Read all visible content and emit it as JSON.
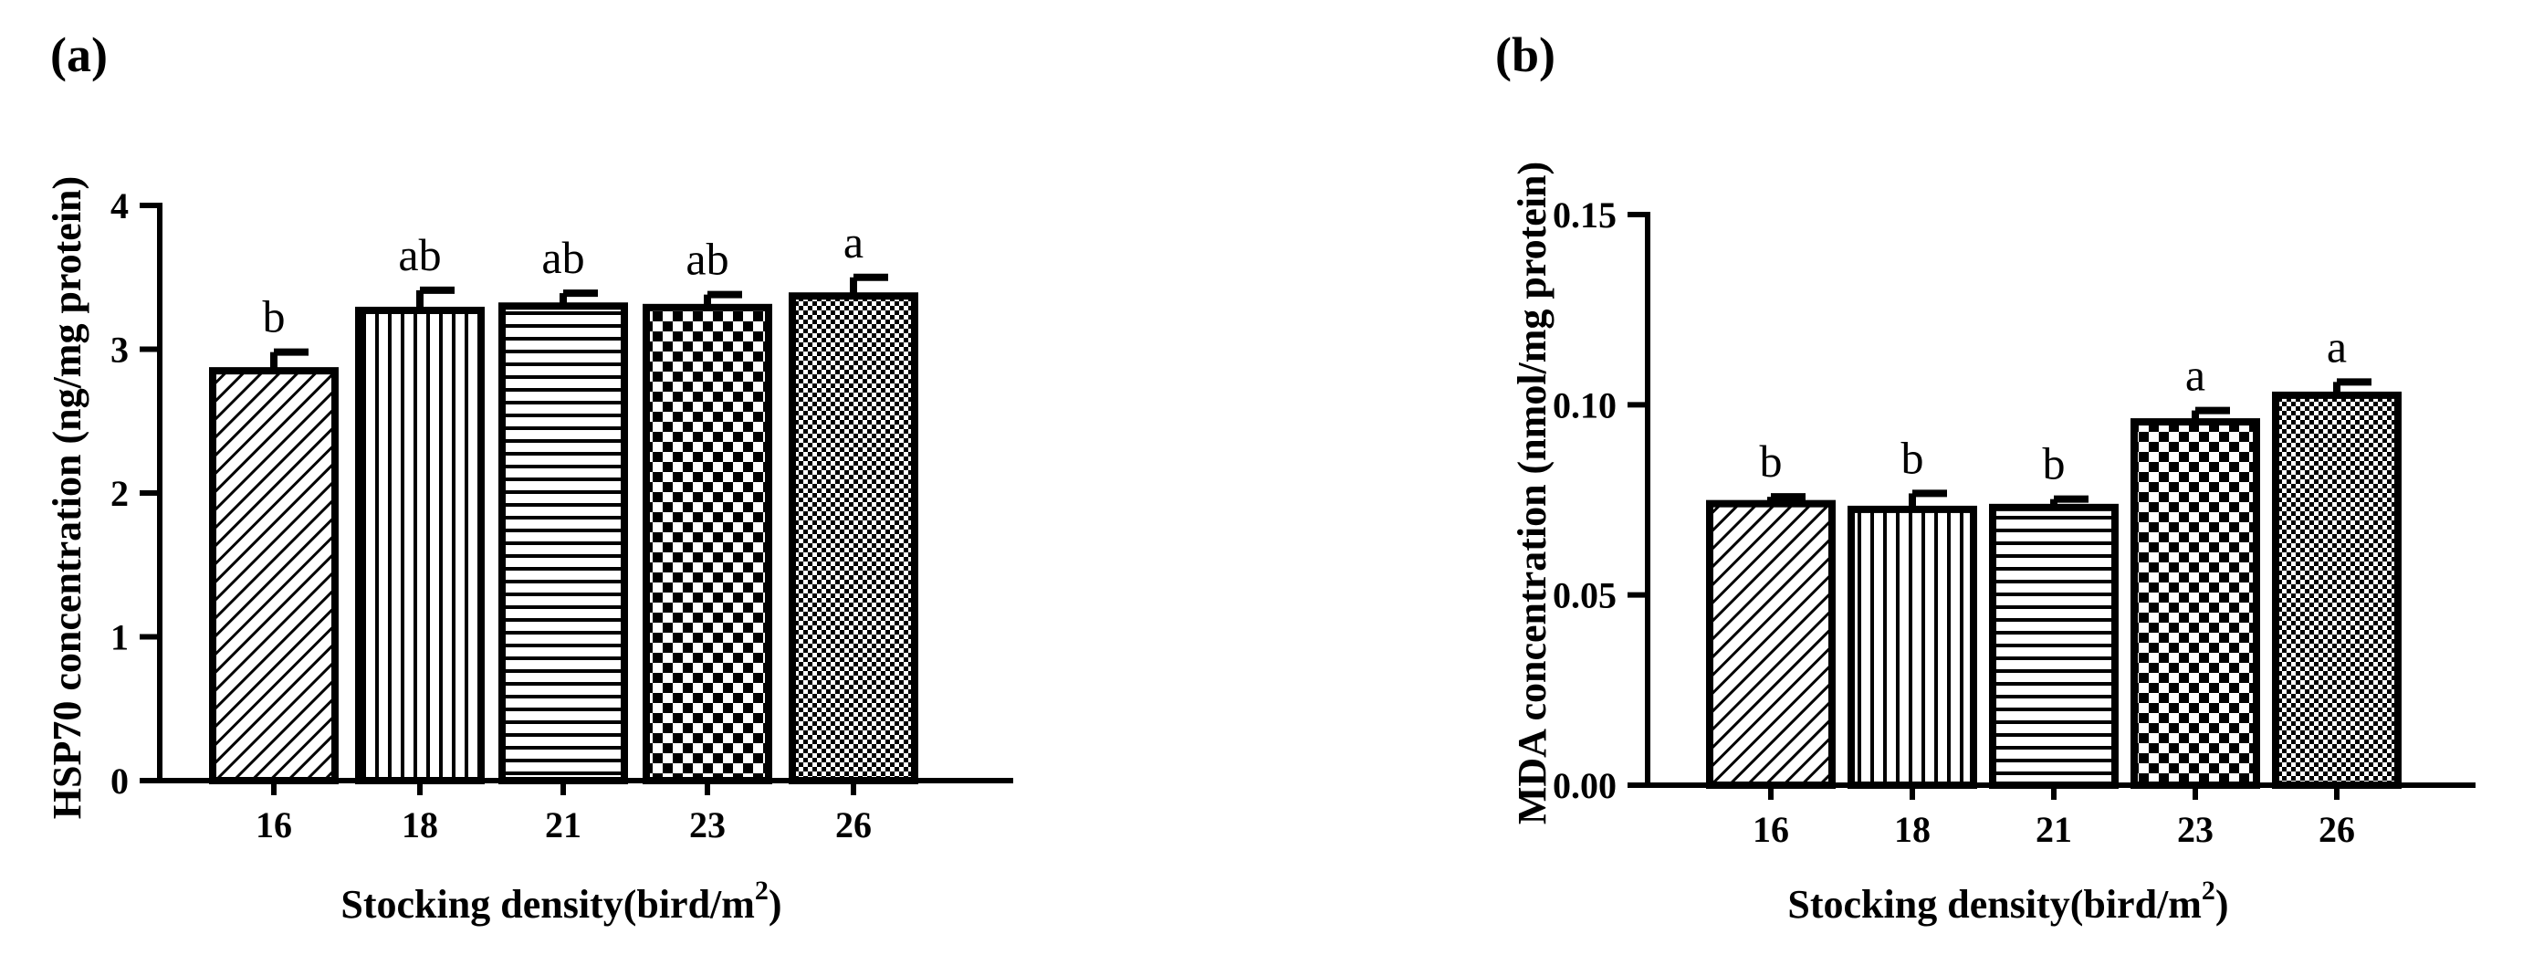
{
  "chart_data": [
    {
      "type": "bar",
      "panel_label": "(a)",
      "categories": [
        "16",
        "18",
        "21",
        "23",
        "26"
      ],
      "values": [
        2.85,
        3.27,
        3.3,
        3.29,
        3.37
      ],
      "errors": [
        0.13,
        0.14,
        0.09,
        0.09,
        0.13
      ],
      "significance": [
        "b",
        "ab",
        "ab",
        "ab",
        "a"
      ],
      "patterns": [
        "diag",
        "vert",
        "horiz",
        "check",
        "dots"
      ],
      "ylim": [
        0,
        4
      ],
      "yticks": [
        "0",
        "1",
        "2",
        "3",
        "4"
      ],
      "ytick_values": [
        0,
        1,
        2,
        3,
        4
      ],
      "ylabel": "HSP70 concentration (ng/mg protein)",
      "xlabel_main": "Stocking density(bird/m",
      "xlabel_sup": "2",
      "xlabel_end": ")"
    },
    {
      "type": "bar",
      "panel_label": "(b)",
      "categories": [
        "16",
        "18",
        "21",
        "23",
        "26"
      ],
      "values": [
        0.074,
        0.0725,
        0.073,
        0.0955,
        0.1025
      ],
      "errors": [
        0.0018,
        0.0042,
        0.0022,
        0.003,
        0.0035
      ],
      "significance": [
        "b",
        "b",
        "b",
        "a",
        "a"
      ],
      "patterns": [
        "diag",
        "vert",
        "horiz",
        "check",
        "dots"
      ],
      "ylim": [
        0,
        0.15
      ],
      "yticks": [
        "0.00",
        "0.05",
        "0.10",
        "0.15"
      ],
      "ytick_values": [
        0,
        0.05,
        0.1,
        0.15
      ],
      "ylabel": "MDA concentration (nmol/mg protein)",
      "xlabel_main": "Stocking density(bird/m",
      "xlabel_sup": "2",
      "xlabel_end": ")"
    }
  ]
}
